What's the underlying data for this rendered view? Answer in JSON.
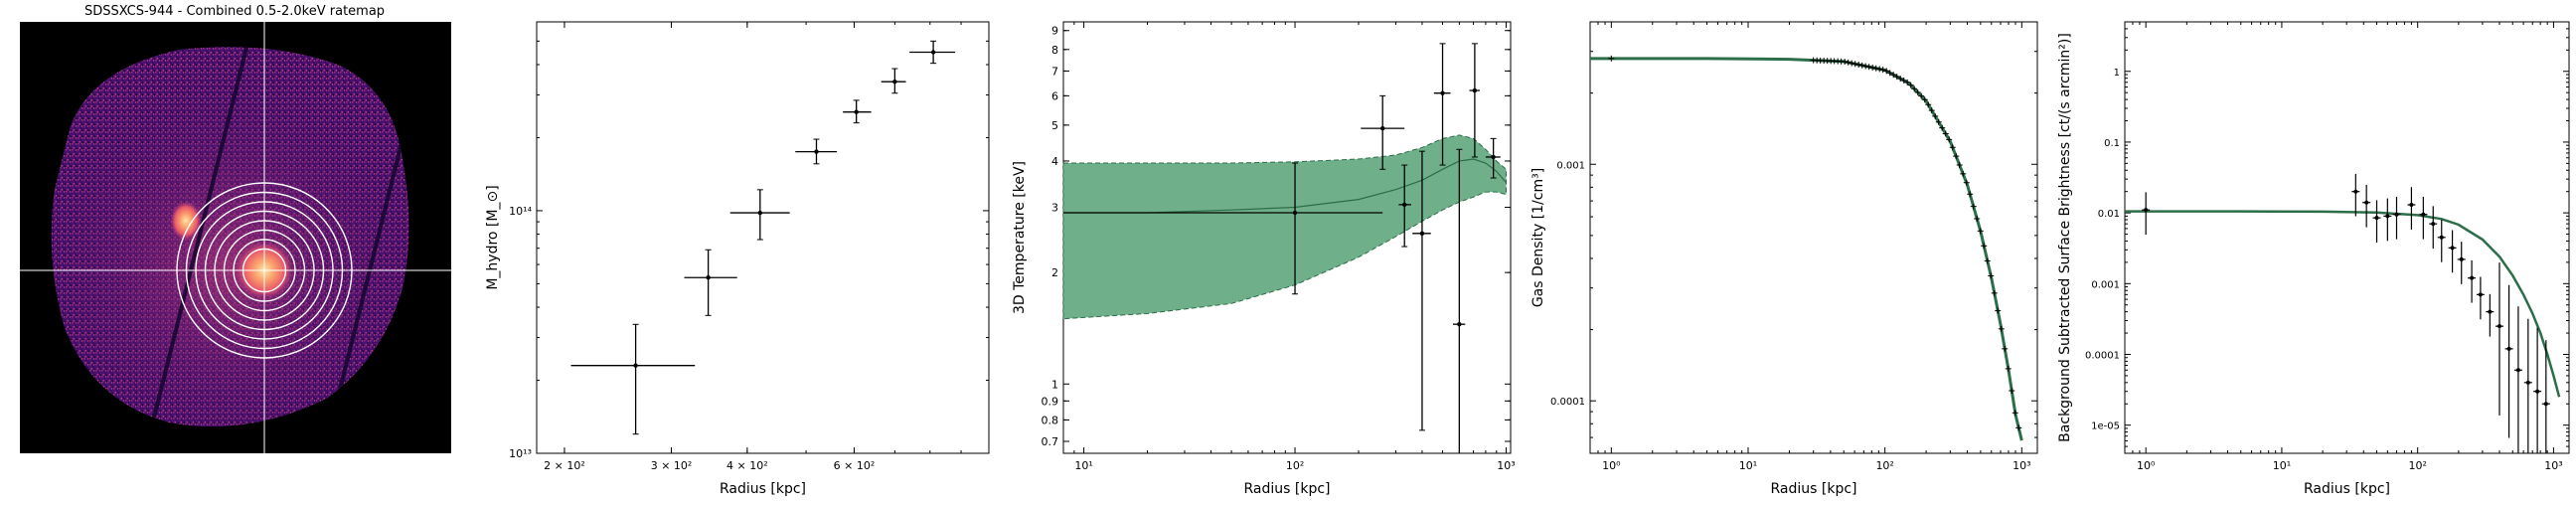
{
  "colors": {
    "fit_fill": "#6fb08a",
    "fit_line": "#2c6e49",
    "data": "#000000",
    "panel_bg": "#000000",
    "rings": "#ffffff"
  },
  "chart_data": [
    {
      "type": "image",
      "title": "SDSSXCS-944 - Combined 0.5-2.0keV ratemap",
      "description_visual": "X-ray ratemap, magma colormap, with concentric annular regions and crosshair",
      "annuli_count": 8
    },
    {
      "type": "scatter",
      "xlabel": "Radius [kpc]",
      "ylabel": "M_hydro [M_⊙]",
      "xscale": "log",
      "yscale": "log",
      "xlim": [
        180,
        1000
      ],
      "ylim": [
        10000000000000.0,
        600000000000000.0
      ],
      "xticks": [
        {
          "v": 200,
          "label": "2 × 10²"
        },
        {
          "v": 300,
          "label": "3 × 10²"
        },
        {
          "v": 400,
          "label": "4 × 10²"
        },
        {
          "v": 600,
          "label": "6 × 10²"
        }
      ],
      "yticks": [
        {
          "v": 10000000000000.0,
          "label": "10¹³"
        },
        {
          "v": 100000000000000.0,
          "label": "10¹⁴"
        }
      ],
      "points": [
        {
          "x": 262,
          "xlo": 205,
          "xhi": 328,
          "y": 23000000000000.0,
          "ylo": 12000000000000.0,
          "yhi": 34000000000000.0
        },
        {
          "x": 345,
          "xlo": 315,
          "xhi": 385,
          "y": 53000000000000.0,
          "ylo": 37000000000000.0,
          "yhi": 69000000000000.0
        },
        {
          "x": 420,
          "xlo": 375,
          "xhi": 470,
          "y": 98000000000000.0,
          "ylo": 76000000000000.0,
          "yhi": 122000000000000.0
        },
        {
          "x": 520,
          "xlo": 480,
          "xhi": 562,
          "y": 175000000000000.0,
          "ylo": 156000000000000.0,
          "yhi": 197000000000000.0
        },
        {
          "x": 605,
          "xlo": 575,
          "xhi": 640,
          "y": 255000000000000.0,
          "ylo": 230000000000000.0,
          "yhi": 285000000000000.0
        },
        {
          "x": 700,
          "xlo": 665,
          "xhi": 730,
          "y": 340000000000000.0,
          "ylo": 305000000000000.0,
          "yhi": 385000000000000.0
        },
        {
          "x": 810,
          "xlo": 740,
          "xhi": 880,
          "y": 450000000000000.0,
          "ylo": 405000000000000.0,
          "yhi": 500000000000000.0
        }
      ]
    },
    {
      "type": "scatter_with_band",
      "xlabel": "Radius [kpc]",
      "ylabel": "3D Temperature [keV]",
      "xscale": "log",
      "yscale": "log",
      "xlim": [
        8,
        1050
      ],
      "ylim": [
        0.65,
        9.5
      ],
      "xticks": [
        {
          "v": 10,
          "label": "10¹"
        },
        {
          "v": 100,
          "label": "10²"
        },
        {
          "v": 1000,
          "label": "10³"
        }
      ],
      "yticks": [
        {
          "v": 0.7,
          "label": "0.7"
        },
        {
          "v": 0.8,
          "label": "0.8"
        },
        {
          "v": 0.9,
          "label": "0.9"
        },
        {
          "v": 1,
          "label": "1"
        },
        {
          "v": 2,
          "label": "2"
        },
        {
          "v": 3,
          "label": "3"
        },
        {
          "v": 4,
          "label": "4"
        },
        {
          "v": 5,
          "label": "5"
        },
        {
          "v": 6,
          "label": "6"
        },
        {
          "v": 7,
          "label": "7"
        },
        {
          "v": 8,
          "label": "8"
        },
        {
          "v": 9,
          "label": "9"
        }
      ],
      "band_x": [
        8,
        20,
        50,
        100,
        200,
        300,
        400,
        500,
        600,
        700,
        800,
        900,
        1000
      ],
      "band_lo": [
        1.5,
        1.55,
        1.65,
        1.85,
        2.2,
        2.5,
        2.75,
        2.95,
        3.1,
        3.2,
        3.3,
        3.3,
        3.25
      ],
      "band_hi": [
        3.95,
        3.95,
        3.95,
        3.98,
        4.05,
        4.15,
        4.35,
        4.6,
        4.7,
        4.6,
        4.3,
        4.0,
        3.8
      ],
      "band_mid": [
        2.9,
        2.9,
        2.95,
        3.0,
        3.15,
        3.35,
        3.55,
        3.8,
        4.0,
        4.05,
        3.95,
        3.75,
        3.5
      ],
      "points": [
        {
          "x": 100,
          "xlo": 8,
          "xhi": 260,
          "y": 2.9,
          "ylo": 1.75,
          "yhi": 3.95
        },
        {
          "x": 260,
          "xlo": 205,
          "xhi": 330,
          "y": 4.9,
          "ylo": 3.8,
          "yhi": 6.0
        },
        {
          "x": 330,
          "xlo": 310,
          "xhi": 355,
          "y": 3.05,
          "ylo": 2.35,
          "yhi": 3.9
        },
        {
          "x": 400,
          "xlo": 360,
          "xhi": 440,
          "y": 2.55,
          "ylo": 0.75,
          "yhi": 4.25
        },
        {
          "x": 500,
          "xlo": 455,
          "xhi": 545,
          "y": 6.1,
          "ylo": 3.9,
          "yhi": 8.3
        },
        {
          "x": 600,
          "xlo": 560,
          "xhi": 640,
          "y": 1.45,
          "ylo": 0.65,
          "yhi": 4.3
        },
        {
          "x": 710,
          "xlo": 670,
          "xhi": 750,
          "y": 6.2,
          "ylo": 4.1,
          "yhi": 8.3
        },
        {
          "x": 870,
          "xlo": 800,
          "xhi": 940,
          "y": 4.1,
          "ylo": 3.6,
          "yhi": 4.6
        }
      ]
    },
    {
      "type": "line_with_points",
      "xlabel": "Radius [kpc]",
      "ylabel": "Gas Density [1/cm³]",
      "xscale": "log",
      "yscale": "log",
      "xlim": [
        0.7,
        1300
      ],
      "ylim": [
        6e-05,
        0.004
      ],
      "xticks": [
        {
          "v": 1,
          "label": "10⁰"
        },
        {
          "v": 10,
          "label": "10¹"
        },
        {
          "v": 100,
          "label": "10²"
        },
        {
          "v": 1000,
          "label": "10³"
        }
      ],
      "yticks": [
        {
          "v": 0.0001,
          "label": "0.0001"
        },
        {
          "v": 0.001,
          "label": "0.001"
        }
      ],
      "model_x": [
        0.7,
        1,
        5,
        20,
        50,
        100,
        150,
        200,
        300,
        400,
        500,
        600,
        700,
        800,
        900,
        1000
      ],
      "model_y": [
        0.0028,
        0.0028,
        0.0028,
        0.00278,
        0.00272,
        0.0025,
        0.0022,
        0.00185,
        0.00125,
        0.00082,
        0.00052,
        0.00033,
        0.00021,
        0.000135,
        8.75e-05,
        6.8e-05
      ]
    },
    {
      "type": "line_with_points",
      "xlabel": "Radius [kpc]",
      "ylabel": "Background Subtracted Surface Brightness [ct/(s arcmin²)]",
      "xscale": "log",
      "yscale": "log",
      "xlim": [
        0.7,
        1300
      ],
      "ylim": [
        4e-06,
        5
      ],
      "xticks": [
        {
          "v": 1,
          "label": "10⁰"
        },
        {
          "v": 10,
          "label": "10¹"
        },
        {
          "v": 100,
          "label": "10²"
        },
        {
          "v": 1000,
          "label": "10³"
        }
      ],
      "yticks": [
        {
          "v": 1e-05,
          "label": "1e-05"
        },
        {
          "v": 0.0001,
          "label": "0.0001"
        },
        {
          "v": 0.001,
          "label": "0.001"
        },
        {
          "v": 0.01,
          "label": "0.01"
        },
        {
          "v": 0.1,
          "label": "0.1"
        },
        {
          "v": 1,
          "label": "1"
        }
      ],
      "model_x": [
        0.7,
        1,
        5,
        20,
        50,
        100,
        150,
        200,
        300,
        400,
        500,
        600,
        700,
        800,
        900,
        1000,
        1100
      ],
      "model_y": [
        0.0105,
        0.0105,
        0.0105,
        0.0104,
        0.0101,
        0.0093,
        0.0082,
        0.0068,
        0.0042,
        0.0024,
        0.0013,
        0.0007,
        0.00038,
        0.0002,
        0.0001,
        5e-05,
        2.5e-05
      ],
      "points": [
        {
          "x": 1,
          "y": 0.011
        },
        {
          "x": 35,
          "y": 0.02
        },
        {
          "x": 42,
          "y": 0.014
        },
        {
          "x": 50,
          "y": 0.0085
        },
        {
          "x": 60,
          "y": 0.009
        },
        {
          "x": 70,
          "y": 0.0095
        },
        {
          "x": 90,
          "y": 0.013
        },
        {
          "x": 110,
          "y": 0.0095
        },
        {
          "x": 130,
          "y": 0.007
        },
        {
          "x": 150,
          "y": 0.0045
        },
        {
          "x": 180,
          "y": 0.0032
        },
        {
          "x": 210,
          "y": 0.0022
        },
        {
          "x": 250,
          "y": 0.0012
        },
        {
          "x": 290,
          "y": 0.0007
        },
        {
          "x": 340,
          "y": 0.0004
        },
        {
          "x": 400,
          "y": 0.00025
        },
        {
          "x": 470,
          "y": 0.00012
        },
        {
          "x": 550,
          "y": 6e-05
        },
        {
          "x": 650,
          "y": 4e-05
        },
        {
          "x": 760,
          "y": 3e-05
        },
        {
          "x": 880,
          "y": 2e-05
        }
      ]
    }
  ]
}
